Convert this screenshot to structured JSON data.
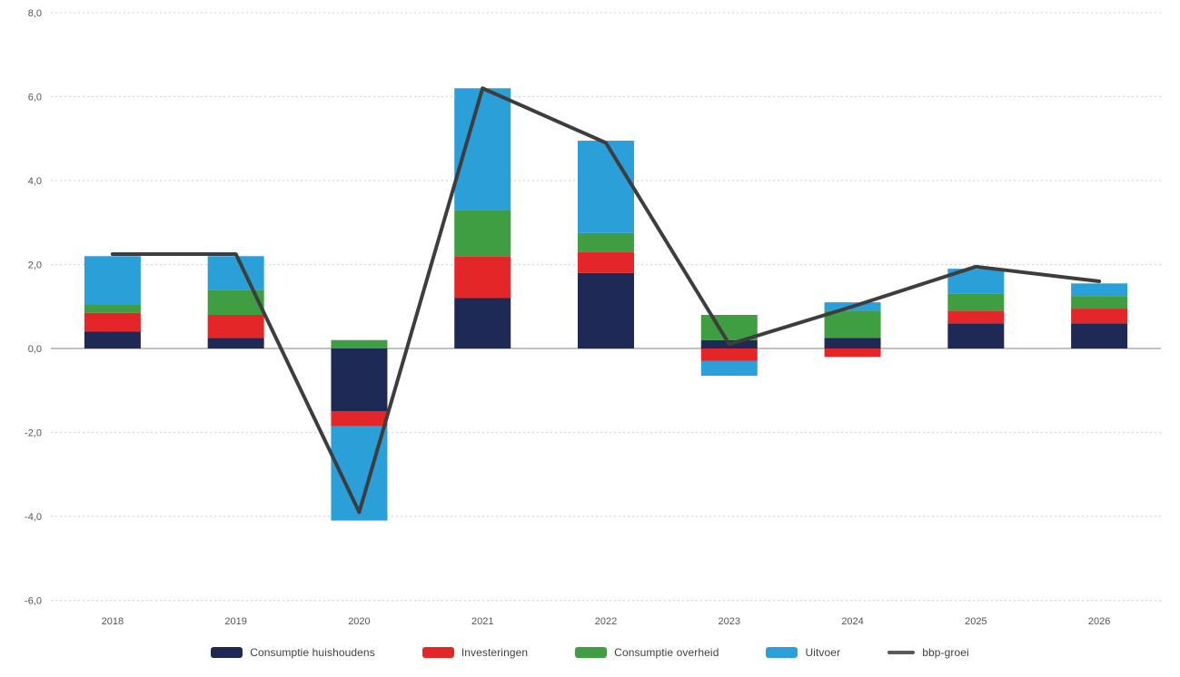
{
  "chart_data": {
    "type": "bar",
    "stacked": true,
    "title": "",
    "xlabel": "",
    "ylabel": "",
    "categories": [
      "2018",
      "2019",
      "2020",
      "2021",
      "2022",
      "2023",
      "2024",
      "2025",
      "2026"
    ],
    "series": [
      {
        "name": "Consumptie huishoudens",
        "color": "#1e2a55",
        "values": [
          0.4,
          0.25,
          -1.5,
          1.2,
          1.8,
          0.2,
          0.25,
          0.6,
          0.6
        ]
      },
      {
        "name": "Investeringen",
        "color": "#e52629",
        "values": [
          0.45,
          0.55,
          -0.35,
          1.0,
          0.5,
          -0.3,
          -0.2,
          0.3,
          0.35
        ]
      },
      {
        "name": "Consumptie overheid",
        "color": "#3f9e42",
        "values": [
          0.2,
          0.6,
          0.2,
          1.1,
          0.45,
          0.6,
          0.65,
          0.4,
          0.3
        ]
      },
      {
        "name": "Uitvoer",
        "color": "#2b9fd8",
        "values": [
          1.15,
          0.8,
          -2.25,
          2.9,
          2.2,
          -0.35,
          0.2,
          0.6,
          0.3
        ]
      }
    ],
    "line_series": {
      "name": "bbp-groei",
      "color": "#3d3d3d",
      "values": [
        2.25,
        2.25,
        -3.9,
        6.2,
        4.9,
        0.1,
        1.0,
        1.95,
        1.6
      ]
    },
    "ylim": [
      -6,
      8
    ],
    "ytick_step": 2,
    "yticks": [
      {
        "value": 8,
        "label": "8,0"
      },
      {
        "value": 6,
        "label": "6,0"
      },
      {
        "value": 4,
        "label": "4,0"
      },
      {
        "value": 2,
        "label": "2,0"
      },
      {
        "value": 0,
        "label": "0,0"
      },
      {
        "value": -2,
        "label": "-2,0"
      },
      {
        "value": -4,
        "label": "-4,0"
      },
      {
        "value": -6,
        "label": "-6,0"
      }
    ],
    "grid": true,
    "grid_color": "#d6d6d6",
    "zero_line_color": "#c0c0c0",
    "axis_text_color": "#555555",
    "legend_position": "bottom"
  },
  "legend": {
    "items": [
      {
        "label": "Consumptie huishoudens",
        "color": "#1e2a55",
        "swatch": "rect"
      },
      {
        "label": "Investeringen",
        "color": "#e52629",
        "swatch": "rect"
      },
      {
        "label": "Consumptie overheid",
        "color": "#3f9e42",
        "swatch": "rect"
      },
      {
        "label": "Uitvoer",
        "color": "#2b9fd8",
        "swatch": "rect"
      },
      {
        "label": "bbp-groei",
        "color": "#595959",
        "swatch": "line"
      }
    ]
  }
}
